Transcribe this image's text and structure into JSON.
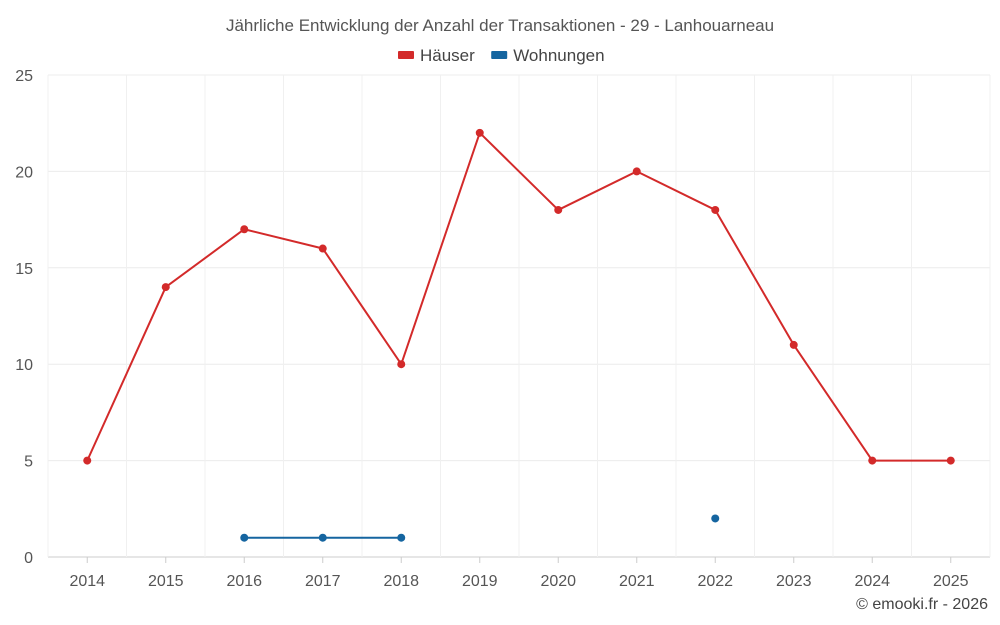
{
  "chart_data": {
    "type": "line",
    "title": "Jährliche Entwicklung der Anzahl der Transaktionen - 29 - Lanhouarneau",
    "categories": [
      "2014",
      "2015",
      "2016",
      "2017",
      "2018",
      "2019",
      "2020",
      "2021",
      "2022",
      "2023",
      "2024",
      "2025"
    ],
    "series": [
      {
        "name": "Häuser",
        "color": "#d32a2a",
        "values": [
          5,
          14,
          17,
          16,
          10,
          22,
          18,
          20,
          18,
          11,
          5,
          5
        ]
      },
      {
        "name": "Wohnungen",
        "color": "#1565a0",
        "values": [
          null,
          null,
          1,
          1,
          1,
          null,
          null,
          null,
          2,
          null,
          null,
          null
        ]
      }
    ],
    "y_ticks": [
      "0",
      "5",
      "10",
      "15",
      "20",
      "25"
    ],
    "ylim": [
      0,
      25
    ],
    "grid": true,
    "legend_position": "top-center"
  },
  "credit": "© emooki.fr - 2026"
}
